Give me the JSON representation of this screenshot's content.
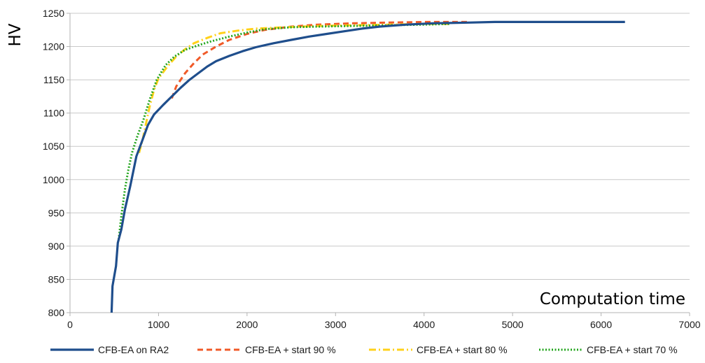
{
  "chart_data": {
    "type": "line",
    "title": "",
    "ylabel": "HV",
    "xlabel": "Computation time",
    "xlim": [
      0,
      7000
    ],
    "ylim": [
      800,
      1250
    ],
    "x_ticks": [
      0,
      1000,
      2000,
      3000,
      4000,
      5000,
      6000,
      7000
    ],
    "y_ticks": [
      800,
      850,
      900,
      950,
      1000,
      1050,
      1100,
      1150,
      1200,
      1250
    ],
    "grid": true,
    "legend_position": "bottom",
    "series": [
      {
        "name": "CFB-EA on RA2",
        "color": "#1f4e8c",
        "style": "solid",
        "points": [
          [
            470,
            800
          ],
          [
            480,
            840
          ],
          [
            500,
            855
          ],
          [
            520,
            870
          ],
          [
            540,
            905
          ],
          [
            580,
            925
          ],
          [
            620,
            955
          ],
          [
            680,
            990
          ],
          [
            750,
            1035
          ],
          [
            820,
            1060
          ],
          [
            880,
            1082
          ],
          [
            950,
            1098
          ],
          [
            1050,
            1112
          ],
          [
            1150,
            1125
          ],
          [
            1250,
            1138
          ],
          [
            1350,
            1150
          ],
          [
            1450,
            1160
          ],
          [
            1550,
            1170
          ],
          [
            1650,
            1178
          ],
          [
            1800,
            1186
          ],
          [
            1950,
            1193
          ],
          [
            2100,
            1199
          ],
          [
            2300,
            1205
          ],
          [
            2500,
            1210
          ],
          [
            2700,
            1215
          ],
          [
            2900,
            1219
          ],
          [
            3100,
            1223
          ],
          [
            3300,
            1227
          ],
          [
            3500,
            1230
          ],
          [
            3800,
            1233
          ],
          [
            4100,
            1235
          ],
          [
            4500,
            1236
          ],
          [
            4800,
            1237
          ],
          [
            5500,
            1237
          ],
          [
            6270,
            1237
          ]
        ]
      },
      {
        "name": "CFB-EA + start 90 %",
        "color": "#f05a28",
        "style": "dashed",
        "points": [
          [
            1150,
            1122
          ],
          [
            1200,
            1140
          ],
          [
            1300,
            1160
          ],
          [
            1400,
            1175
          ],
          [
            1500,
            1188
          ],
          [
            1650,
            1200
          ],
          [
            1800,
            1210
          ],
          [
            2000,
            1219
          ],
          [
            2200,
            1225
          ],
          [
            2500,
            1230
          ],
          [
            2800,
            1233
          ],
          [
            3200,
            1235
          ],
          [
            3600,
            1236
          ],
          [
            4000,
            1237
          ],
          [
            4500,
            1237
          ]
        ]
      },
      {
        "name": "CFB-EA + start 80 %",
        "color": "#ffd11a",
        "style": "dashdot",
        "points": [
          [
            780,
            1040
          ],
          [
            820,
            1060
          ],
          [
            860,
            1085
          ],
          [
            900,
            1110
          ],
          [
            950,
            1135
          ],
          [
            1000,
            1152
          ],
          [
            1100,
            1170
          ],
          [
            1200,
            1185
          ],
          [
            1300,
            1196
          ],
          [
            1400,
            1205
          ],
          [
            1550,
            1213
          ],
          [
            1700,
            1220
          ],
          [
            1900,
            1224
          ],
          [
            2100,
            1227
          ],
          [
            2400,
            1229
          ],
          [
            2800,
            1231
          ],
          [
            3200,
            1232
          ],
          [
            3600,
            1233
          ],
          [
            4000,
            1234
          ],
          [
            4300,
            1234
          ]
        ]
      },
      {
        "name": "CFB-EA + start 70 %",
        "color": "#22a51c",
        "style": "dotted",
        "points": [
          [
            550,
            910
          ],
          [
            580,
            945
          ],
          [
            620,
            985
          ],
          [
            660,
            1015
          ],
          [
            700,
            1040
          ],
          [
            760,
            1065
          ],
          [
            830,
            1090
          ],
          [
            900,
            1120
          ],
          [
            980,
            1150
          ],
          [
            1080,
            1172
          ],
          [
            1180,
            1185
          ],
          [
            1300,
            1195
          ],
          [
            1450,
            1202
          ],
          [
            1600,
            1208
          ],
          [
            1800,
            1215
          ],
          [
            2000,
            1221
          ],
          [
            2200,
            1226
          ],
          [
            2500,
            1229
          ],
          [
            2800,
            1230
          ],
          [
            3200,
            1231
          ],
          [
            3600,
            1232
          ],
          [
            4000,
            1233
          ],
          [
            4300,
            1234
          ]
        ]
      }
    ]
  }
}
